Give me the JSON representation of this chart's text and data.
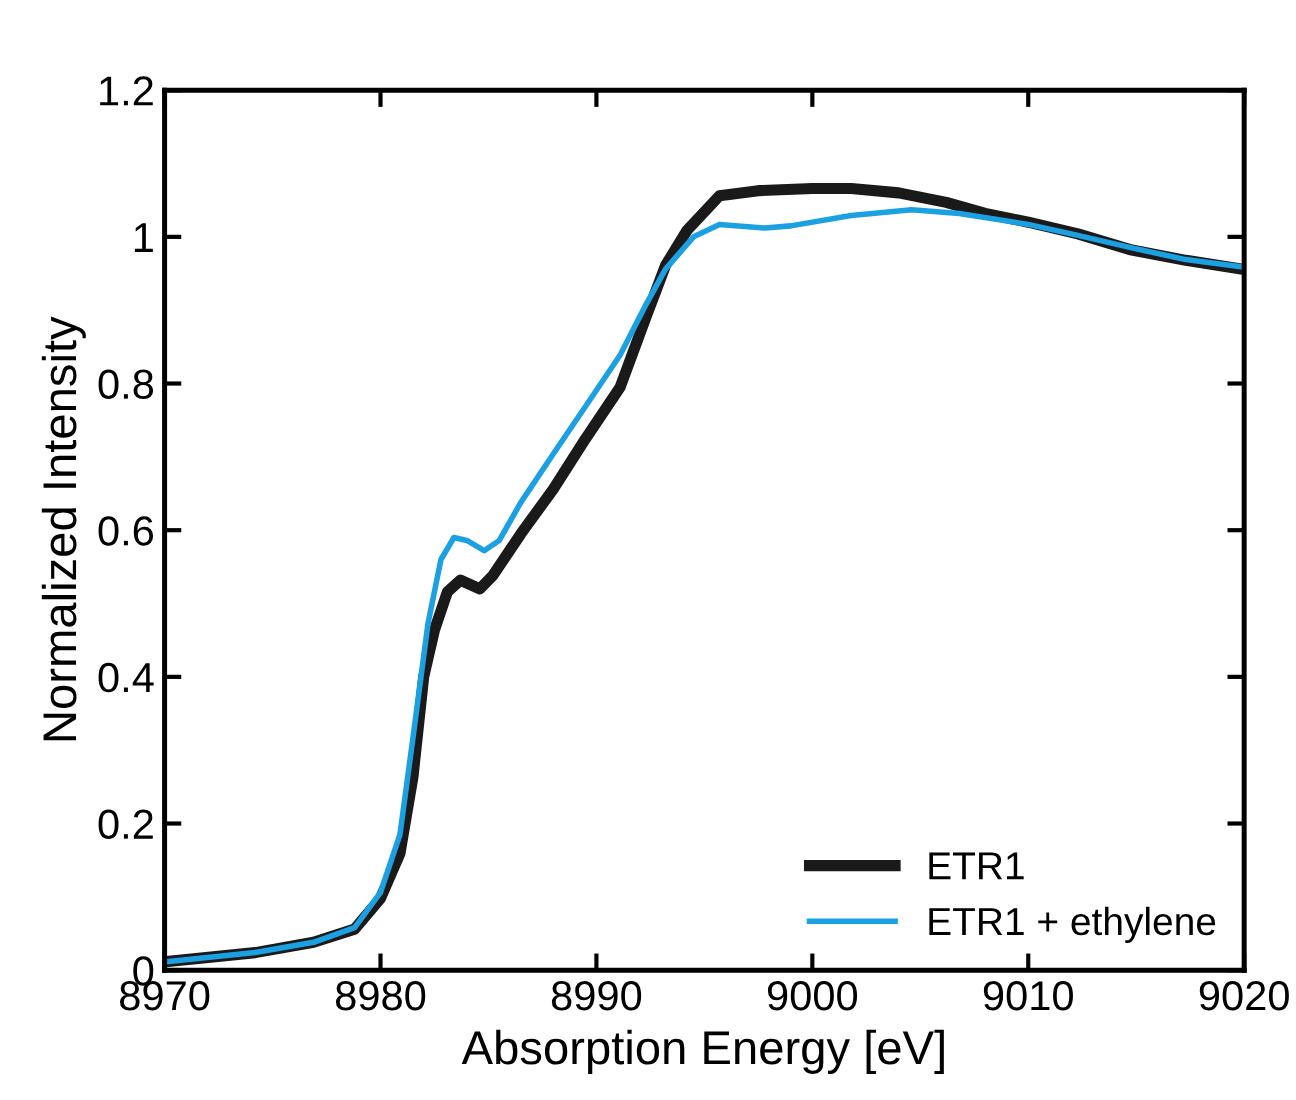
{
  "chart_data": {
    "type": "line",
    "xlabel": "Absorption Energy [eV]",
    "ylabel": "Normalized Intensity",
    "xlim": [
      8970,
      9020
    ],
    "xticks": [
      8970,
      8980,
      8990,
      9000,
      9010,
      9020
    ],
    "ylim": [
      0,
      1.2
    ],
    "yticks": [
      0,
      0.2,
      0.4,
      0.6,
      0.8,
      1,
      1.2
    ],
    "grid": false,
    "legend": "bottom right",
    "marker": "none",
    "line_style": "solid",
    "series": [
      {
        "name": "ETR1",
        "color": "#1a1a1a",
        "x": [
          8970.2,
          8974.2,
          8976.9,
          8978.8,
          8980,
          8980.9,
          8981.5,
          8982,
          8982.5,
          8983.1,
          8983.7,
          8984.6,
          8985.2,
          8986.5,
          8988,
          8989.5,
          8991.1,
          8992.3,
          8993.2,
          8994.2,
          8995.7,
          8997.5,
          9000,
          9001.8,
          9004,
          9006.2,
          9008,
          9010,
          9012.3,
          9014.8,
          9017.3,
          9019.9
        ],
        "values": [
          0.012,
          0.024,
          0.038,
          0.056,
          0.098,
          0.159,
          0.263,
          0.4,
          0.464,
          0.516,
          0.532,
          0.52,
          0.538,
          0.595,
          0.656,
          0.725,
          0.795,
          0.891,
          0.961,
          1.009,
          1.056,
          1.063,
          1.066,
          1.066,
          1.06,
          1.047,
          1.032,
          1.02,
          1.004,
          0.982,
          0.968,
          0.956
        ]
      },
      {
        "name": "ETR1 + ethylene",
        "color": "#1ba1e2",
        "x": [
          8970.2,
          8974.2,
          8976.9,
          8978.8,
          8980,
          8980.9,
          8981.5,
          8982.2,
          8982.8,
          8983.4,
          8984,
          8984.8,
          8985.5,
          8986.5,
          8988,
          8989.5,
          8991.1,
          8992.3,
          8993.2,
          8994.5,
          8995.7,
          8997.8,
          8999,
          9001.8,
          9004.6,
          9006.8,
          9010,
          9012.3,
          9014.8,
          9017.3,
          9019.9
        ],
        "values": [
          0.012,
          0.024,
          0.038,
          0.058,
          0.106,
          0.185,
          0.316,
          0.473,
          0.56,
          0.59,
          0.586,
          0.572,
          0.586,
          0.638,
          0.704,
          0.769,
          0.839,
          0.908,
          0.956,
          1.0,
          1.017,
          1.012,
          1.015,
          1.029,
          1.037,
          1.032,
          1.017,
          1.002,
          0.985,
          0.969,
          0.959
        ]
      }
    ]
  }
}
